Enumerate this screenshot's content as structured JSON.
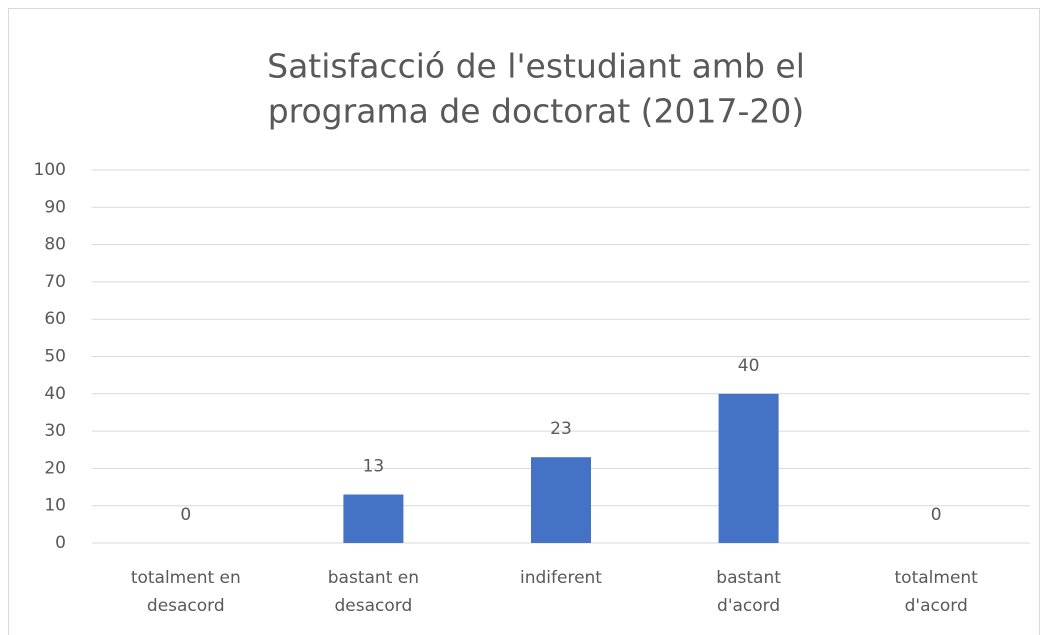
{
  "chart_data": {
    "type": "bar",
    "title": [
      "Satisfacció de l'estudiant amb el",
      "programa de doctorat (2017-20)"
    ],
    "categories": [
      "totalment en desacord",
      "bastant en desacord",
      "indiferent",
      "bastant d'acord",
      "totalment d'acord"
    ],
    "values": [
      0,
      13,
      23,
      40,
      0
    ],
    "color": "#4472c4",
    "ylim": [
      0,
      100
    ],
    "yticks": [
      0,
      10,
      20,
      30,
      40,
      50,
      60,
      70,
      80,
      90,
      100
    ],
    "grid": true
  }
}
